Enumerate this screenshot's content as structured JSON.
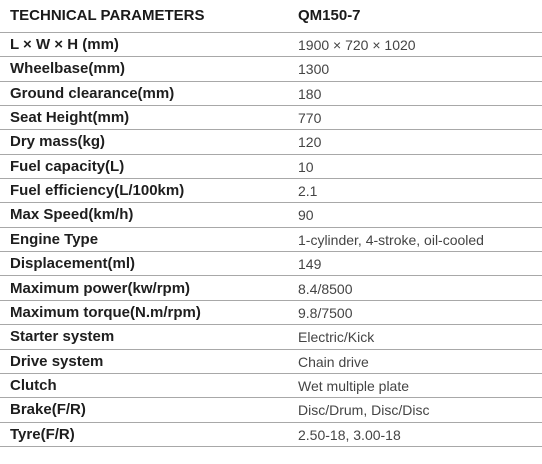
{
  "table": {
    "header": [
      "TECHNICAL PARAMETERS",
      "QM150-7"
    ],
    "rows": [
      [
        "L × W × H (mm)",
        "1900 × 720 × 1020"
      ],
      [
        "Wheelbase(mm)",
        "1300"
      ],
      [
        "Ground clearance(mm)",
        "180"
      ],
      [
        "Seat Height(mm)",
        "770"
      ],
      [
        "Dry mass(kg)",
        "120"
      ],
      [
        "Fuel capacity(L)",
        "10"
      ],
      [
        "Fuel efficiency(L/100km)",
        "2.1"
      ],
      [
        "Max Speed(km/h)",
        "90"
      ],
      [
        "Engine Type",
        "1-cylinder, 4-stroke, oil-cooled"
      ],
      [
        "Displacement(ml)",
        "149"
      ],
      [
        "Maximum power(kw/rpm)",
        "8.4/8500"
      ],
      [
        "Maximum torque(N.m/rpm)",
        "9.8/7500"
      ],
      [
        "Starter system",
        "Electric/Kick"
      ],
      [
        "Drive system",
        "Chain drive"
      ],
      [
        "Clutch",
        "Wet multiple plate"
      ],
      [
        "Brake(F/R)",
        "Disc/Drum, Disc/Disc"
      ],
      [
        "Tyre(F/R)",
        "2.50-18, 3.00-18"
      ]
    ]
  }
}
